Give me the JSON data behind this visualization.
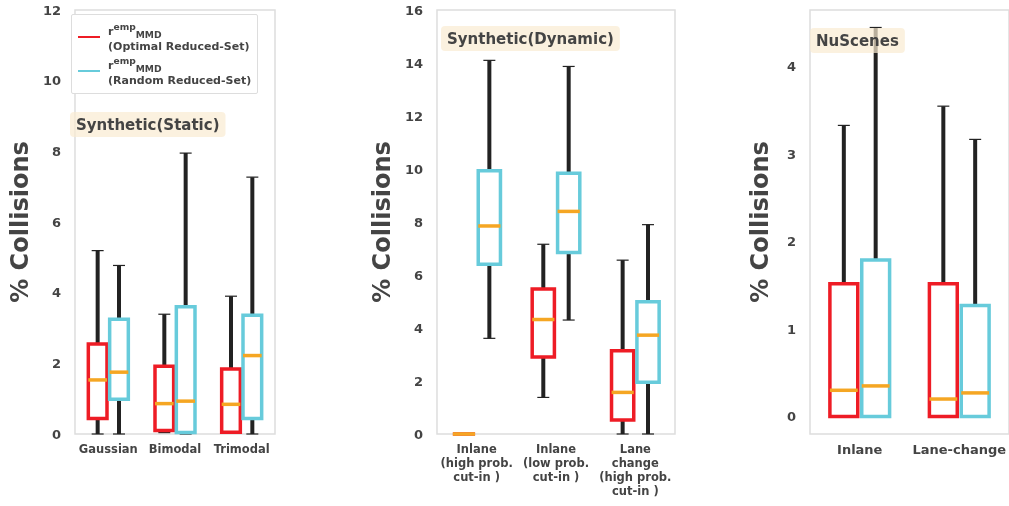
{
  "chart_data": [
    {
      "type": "box",
      "title": "Synthetic(Static)",
      "ylabel": "% Collisions",
      "categories": [
        "Gaussian",
        "Bimodal",
        "Trimodal"
      ],
      "ylim": [
        0,
        12
      ],
      "yticks": [
        0,
        2,
        4,
        6,
        8,
        10,
        12
      ],
      "legend": "top left",
      "series": [
        {
          "name": "r$^{emp}$$_{MMD}$\n(Optimal Reduced-Set)",
          "color": "#ee1c25",
          "boxes": [
            {
              "low": 0,
              "q1": 0.44,
              "median": 1.53,
              "q3": 2.55,
              "high": 5.19
            },
            {
              "low": 0.04,
              "q1": 0.1,
              "median": 0.86,
              "q3": 1.92,
              "high": 3.39
            },
            {
              "low": 0.05,
              "q1": 0.05,
              "median": 0.84,
              "q3": 1.84,
              "high": 3.9
            }
          ]
        },
        {
          "name": "r$^{emp}$$_{MMD}$\n(Random Reduced-Set)",
          "color": "#67cbdb",
          "boxes": [
            {
              "low": 0,
              "q1": 0.98,
              "median": 1.75,
              "q3": 3.25,
              "high": 4.77
            },
            {
              "low": 0,
              "q1": 0.04,
              "median": 0.93,
              "q3": 3.6,
              "high": 7.95
            },
            {
              "low": 0,
              "q1": 0.44,
              "median": 2.22,
              "q3": 3.36,
              "high": 7.27
            }
          ]
        }
      ]
    },
    {
      "type": "box",
      "title": "Synthetic(Dynamic)",
      "ylabel": "% Collisions",
      "categories": [
        "Inlane\n(high prob.\ncut-in )",
        "Inlane\n(low prob.\ncut-in )",
        "Lane\nchange\n(high prob.\ncut-in )"
      ],
      "ylim": [
        0,
        16
      ],
      "yticks": [
        0,
        2,
        4,
        6,
        8,
        10,
        12,
        14,
        16
      ],
      "series": [
        {
          "color": "#ee1c25",
          "boxes": [
            {
              "low": 0,
              "q1": 0,
              "median": 0,
              "q3": 0,
              "high": 0
            },
            {
              "low": 1.38,
              "q1": 2.91,
              "median": 4.32,
              "q3": 5.47,
              "high": 7.16
            },
            {
              "low": 0,
              "q1": 0.53,
              "median": 1.57,
              "q3": 3.14,
              "high": 6.56
            }
          ]
        },
        {
          "color": "#67cbdb",
          "boxes": [
            {
              "low": 3.61,
              "q1": 6.41,
              "median": 7.85,
              "q3": 9.93,
              "high": 14.1
            },
            {
              "low": 4.3,
              "q1": 6.85,
              "median": 8.4,
              "q3": 9.84,
              "high": 13.87
            },
            {
              "low": 0,
              "q1": 1.95,
              "median": 3.73,
              "q3": 4.99,
              "high": 7.9
            }
          ]
        }
      ]
    },
    {
      "type": "box",
      "title": "NuScenes",
      "ylabel": "% Collisions",
      "categories": [
        "Inlane",
        "Lane-change"
      ],
      "ylim": [
        -0.2,
        4.65
      ],
      "yticks": [
        0,
        1,
        2,
        3,
        4
      ],
      "series": [
        {
          "color": "#ee1c25",
          "boxes": [
            {
              "low": 0,
              "q1": 0,
              "median": 0.3,
              "q3": 1.52,
              "high": 3.33
            },
            {
              "low": 0,
              "q1": 0,
              "median": 0.2,
              "q3": 1.52,
              "high": 3.55
            }
          ]
        },
        {
          "color": "#67cbdb",
          "boxes": [
            {
              "low": 0,
              "q1": 0,
              "median": 0.35,
              "q3": 1.79,
              "high": 4.45
            },
            {
              "low": 0,
              "q1": 0,
              "median": 0.27,
              "q3": 1.27,
              "high": 3.17
            }
          ]
        }
      ]
    }
  ]
}
